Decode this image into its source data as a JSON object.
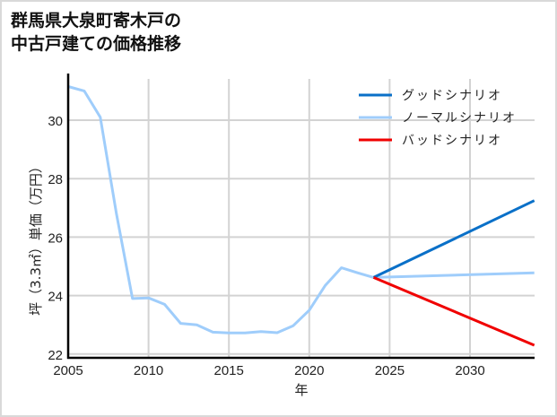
{
  "title_lines": [
    "群馬県大泉町寄木戸の",
    "中古戸建ての価格推移"
  ],
  "chart_data": {
    "type": "line",
    "title": "群馬県大泉町寄木戸の中古戸建ての価格推移",
    "xlabel": "年",
    "ylabel": "坪（3.3㎡）単価（万円）",
    "xlim": [
      2005,
      2034
    ],
    "ylim": [
      22,
      31.5
    ],
    "xticks": [
      2005,
      2010,
      2015,
      2020,
      2025,
      2030
    ],
    "yticks": [
      22,
      24,
      26,
      28,
      30
    ],
    "grid": true,
    "legend_position": "upper right",
    "series": [
      {
        "name": "グッドシナリオ",
        "color": "#0a70c8",
        "x": [
          2024,
          2034
        ],
        "values": [
          24.62,
          27.25
        ]
      },
      {
        "name": "ノーマルシナリオ",
        "color": "#9fcdfb",
        "x": [
          2005,
          2006,
          2007,
          2008,
          2009,
          2010,
          2011,
          2012,
          2013,
          2014,
          2015,
          2016,
          2017,
          2018,
          2019,
          2020,
          2021,
          2022,
          2023,
          2024,
          2034
        ],
        "values": [
          31.15,
          31.0,
          30.1,
          26.8,
          23.9,
          23.92,
          23.7,
          23.05,
          23.0,
          22.75,
          22.72,
          22.72,
          22.77,
          22.73,
          22.97,
          23.5,
          24.35,
          24.95,
          24.78,
          24.62,
          24.78
        ]
      },
      {
        "name": "バッドシナリオ",
        "color": "#f00000",
        "x": [
          2024,
          2034
        ],
        "values": [
          24.62,
          22.3
        ]
      }
    ]
  }
}
